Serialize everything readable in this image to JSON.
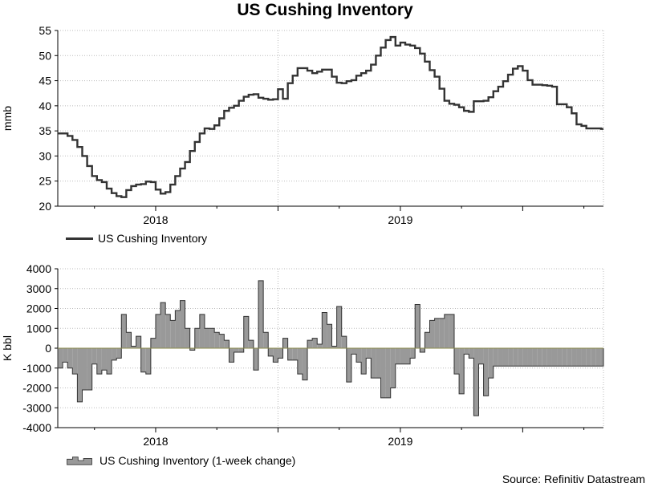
{
  "title": "US Cushing Inventory",
  "source": "Source: Refinitiv Datastream",
  "colors": {
    "line": "#333333",
    "bar_fill": "#999999",
    "bar_stroke": "#333333",
    "grid": "#bbbbbb",
    "zero": "#8a8a4a"
  },
  "chart_data": [
    {
      "type": "line",
      "title": "US Cushing Inventory",
      "ylabel": "mmb",
      "ylim": [
        20,
        55
      ],
      "yticks": [
        20,
        25,
        30,
        35,
        40,
        45,
        50,
        55
      ],
      "xlim": [
        2017.6,
        2019.83
      ],
      "xtick_labels": [
        {
          "label": "2018",
          "pos": 2018.0
        },
        {
          "label": "2019",
          "pos": 2019.0
        }
      ],
      "legend": "US Cushing Inventory",
      "series": [
        {
          "name": "US Cushing Inventory",
          "x": [
            2017.6,
            2017.62,
            2017.64,
            2017.66,
            2017.68,
            2017.7,
            2017.72,
            2017.74,
            2017.76,
            2017.78,
            2017.8,
            2017.82,
            2017.84,
            2017.86,
            2017.88,
            2017.9,
            2017.92,
            2017.94,
            2017.96,
            2017.98,
            2018.0,
            2018.02,
            2018.04,
            2018.06,
            2018.08,
            2018.1,
            2018.12,
            2018.14,
            2018.16,
            2018.18,
            2018.2,
            2018.22,
            2018.24,
            2018.26,
            2018.28,
            2018.3,
            2018.32,
            2018.34,
            2018.36,
            2018.38,
            2018.4,
            2018.42,
            2018.44,
            2018.46,
            2018.48,
            2018.5,
            2018.52,
            2018.54,
            2018.56,
            2018.58,
            2018.6,
            2018.62,
            2018.64,
            2018.66,
            2018.68,
            2018.7,
            2018.72,
            2018.74,
            2018.76,
            2018.78,
            2018.8,
            2018.82,
            2018.84,
            2018.86,
            2018.88,
            2018.9,
            2018.92,
            2018.94,
            2018.96,
            2018.98,
            2019.0,
            2019.02,
            2019.04,
            2019.06,
            2019.08,
            2019.1,
            2019.12,
            2019.14,
            2019.16,
            2019.18,
            2019.2,
            2019.22,
            2019.24,
            2019.26,
            2019.28,
            2019.3,
            2019.32,
            2019.34,
            2019.36,
            2019.38,
            2019.4,
            2019.42,
            2019.44,
            2019.46,
            2019.48,
            2019.5,
            2019.52,
            2019.54,
            2019.56,
            2019.58,
            2019.6,
            2019.62,
            2019.64,
            2019.66,
            2019.68,
            2019.7,
            2019.72,
            2019.74,
            2019.76,
            2019.78,
            2019.8,
            2019.82
          ],
          "values": [
            34.5,
            34.5,
            34.0,
            33.2,
            31.8,
            30.0,
            28.0,
            26.0,
            25.2,
            24.8,
            23.5,
            22.6,
            22.0,
            21.8,
            23.2,
            24.0,
            24.3,
            24.4,
            24.9,
            24.8,
            23.3,
            22.5,
            22.8,
            24.3,
            26.0,
            27.5,
            28.8,
            31.0,
            32.8,
            34.5,
            35.5,
            35.4,
            36.1,
            37.5,
            39.0,
            39.6,
            40.0,
            41.0,
            41.8,
            42.2,
            42.3,
            41.6,
            41.4,
            41.2,
            41.3,
            43.3,
            41.4,
            44.5,
            46.0,
            47.5,
            47.5,
            47.0,
            46.5,
            46.8,
            47.2,
            47.2,
            45.8,
            44.6,
            44.5,
            44.9,
            45.1,
            46.0,
            46.5,
            47.0,
            48.2,
            50.0,
            51.6,
            53.1,
            53.7,
            52.0,
            52.6,
            52.2,
            52.0,
            51.5,
            50.4,
            48.8,
            47.1,
            45.8,
            43.4,
            41.0,
            40.4,
            40.2,
            39.7,
            39.0,
            38.8,
            40.9,
            40.9,
            41.0,
            41.7,
            42.9,
            43.8,
            44.9,
            46.2,
            47.4,
            47.9,
            47.0,
            45.1,
            44.2,
            44.2,
            44.1,
            44.0,
            43.8,
            40.3,
            40.3,
            39.7,
            38.5,
            36.3,
            36.0,
            35.5,
            35.5,
            35.5,
            35.4
          ]
        }
      ]
    },
    {
      "type": "bar",
      "title": "US Cushing Inventory (1-week change)",
      "ylabel": "K bbl",
      "ylim": [
        -4000,
        4000
      ],
      "yticks": [
        -4000,
        -3000,
        -2000,
        -1000,
        0,
        1000,
        2000,
        3000,
        4000
      ],
      "xlim": [
        2017.6,
        2019.83
      ],
      "xtick_labels": [
        {
          "label": "2018",
          "pos": 2018.0
        },
        {
          "label": "2019",
          "pos": 2019.0
        }
      ],
      "legend": "US Cushing Inventory (1-week change)",
      "series": [
        {
          "name": "US Cushing Inventory (1-week change)",
          "x": [
            2017.6,
            2017.62,
            2017.64,
            2017.66,
            2017.68,
            2017.7,
            2017.72,
            2017.74,
            2017.76,
            2017.78,
            2017.8,
            2017.82,
            2017.84,
            2017.86,
            2017.88,
            2017.9,
            2017.92,
            2017.94,
            2017.96,
            2017.98,
            2018.0,
            2018.02,
            2018.04,
            2018.06,
            2018.08,
            2018.1,
            2018.12,
            2018.14,
            2018.16,
            2018.18,
            2018.2,
            2018.22,
            2018.24,
            2018.26,
            2018.28,
            2018.3,
            2018.32,
            2018.34,
            2018.36,
            2018.38,
            2018.4,
            2018.42,
            2018.44,
            2018.46,
            2018.48,
            2018.5,
            2018.52,
            2018.54,
            2018.56,
            2018.58,
            2018.6,
            2018.62,
            2018.64,
            2018.66,
            2018.68,
            2018.7,
            2018.72,
            2018.74,
            2018.76,
            2018.78,
            2018.8,
            2018.82,
            2018.84,
            2018.86,
            2018.88,
            2018.9,
            2018.92,
            2018.94,
            2018.96,
            2018.98,
            2019.0,
            2019.02,
            2019.04,
            2019.06,
            2019.08,
            2019.1,
            2019.12,
            2019.14,
            2019.16,
            2019.18,
            2019.2,
            2019.22,
            2019.24,
            2019.26,
            2019.28,
            2019.3,
            2019.32,
            2019.34,
            2019.36,
            2019.38,
            2019.4,
            2019.42,
            2019.44,
            2019.46,
            2019.48,
            2019.5,
            2019.52,
            2019.54,
            2019.56,
            2019.58,
            2019.6,
            2019.62,
            2019.64,
            2019.66,
            2019.68,
            2019.7,
            2019.72,
            2019.74,
            2019.76,
            2019.78,
            2019.8,
            2019.82
          ],
          "values": [
            -1000,
            -700,
            -1000,
            -1300,
            -2700,
            -2100,
            -2100,
            -800,
            -1300,
            -1100,
            -1300,
            -600,
            -500,
            1700,
            800,
            100,
            600,
            -1200,
            -1300,
            500,
            1700,
            2300,
            1700,
            1400,
            1900,
            2400,
            1000,
            -100,
            1000,
            1700,
            1000,
            1000,
            800,
            700,
            400,
            -700,
            -200,
            -200,
            1600,
            400,
            -1100,
            3400,
            800,
            -400,
            -700,
            -500,
            500,
            -600,
            -600,
            -1300,
            -1600,
            400,
            500,
            200,
            1800,
            1200,
            100,
            2100,
            600,
            -1700,
            -300,
            -700,
            -1300,
            -500,
            -1500,
            -1500,
            -2500,
            -2500,
            -2000,
            -800,
            -800,
            -800,
            -500,
            2200,
            -200,
            800,
            1400,
            1500,
            1500,
            1700,
            1700,
            -1300,
            -2300,
            -300,
            -500,
            -3400,
            -800,
            -2400,
            -1500,
            -900,
            -900,
            -900,
            -900,
            -900,
            -900,
            -900,
            -900,
            -900,
            -900,
            -900,
            -900,
            -900,
            -900,
            -900,
            -900,
            -900,
            -900,
            -900,
            -900,
            -900,
            -900,
            -900
          ]
        }
      ]
    }
  ]
}
